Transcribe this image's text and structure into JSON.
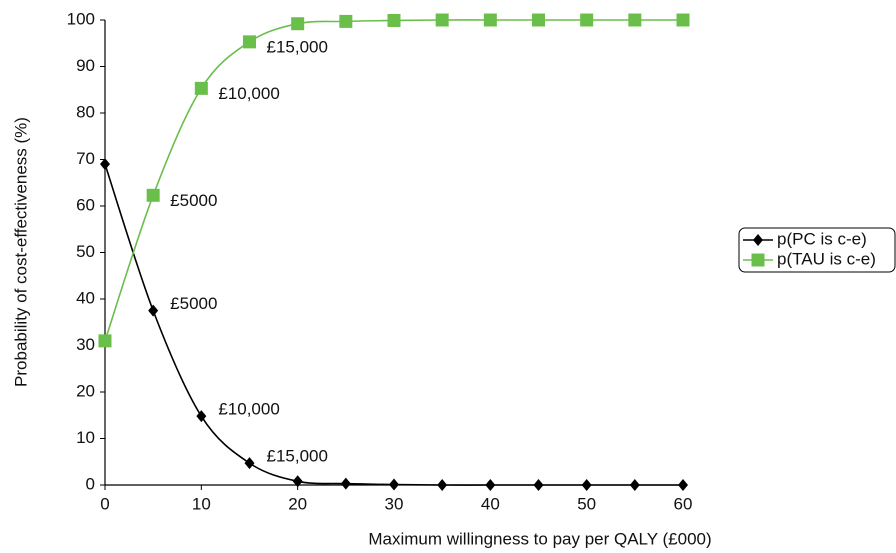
{
  "chart_data": {
    "type": "line",
    "xlabel": "Maximum willingness to pay per QALY (£000)",
    "ylabel": "Probability of cost-effectiveness (%)",
    "x": [
      0,
      5,
      10,
      15,
      20,
      25,
      30,
      35,
      40,
      45,
      50,
      55,
      60
    ],
    "series": [
      {
        "name": "p(PC is c-e)",
        "color": "#000000",
        "marker": "diamond",
        "values": [
          69,
          37.5,
          14.8,
          4.7,
          0.8,
          0.3,
          0.1,
          0,
          0,
          0,
          0,
          0,
          0
        ]
      },
      {
        "name": "p(TAU is c-e)",
        "color": "#6abf4b",
        "marker": "square",
        "values": [
          31,
          62.3,
          85.3,
          95.3,
          99.2,
          99.7,
          99.9,
          100,
          100,
          100,
          100,
          100,
          100
        ]
      }
    ],
    "annotations": [
      {
        "text": "£5000",
        "x": 5,
        "series": "p(TAU is c-e)"
      },
      {
        "text": "£10,000",
        "x": 10,
        "series": "p(TAU is c-e)"
      },
      {
        "text": "£15,000",
        "x": 15,
        "series": "p(TAU is c-e)"
      },
      {
        "text": "£5000",
        "x": 5,
        "series": "p(PC is c-e)"
      },
      {
        "text": "£10,000",
        "x": 10,
        "series": "p(PC is c-e)"
      },
      {
        "text": "£15,000",
        "x": 15,
        "series": "p(PC is c-e)"
      }
    ],
    "xlim": [
      0,
      60
    ],
    "xticks": [
      0,
      10,
      20,
      30,
      40,
      50,
      60
    ],
    "ylim": [
      0,
      100
    ],
    "yticks": [
      0,
      10,
      20,
      30,
      40,
      50,
      60,
      70,
      80,
      90,
      100
    ],
    "grid": false,
    "legend": "right"
  }
}
